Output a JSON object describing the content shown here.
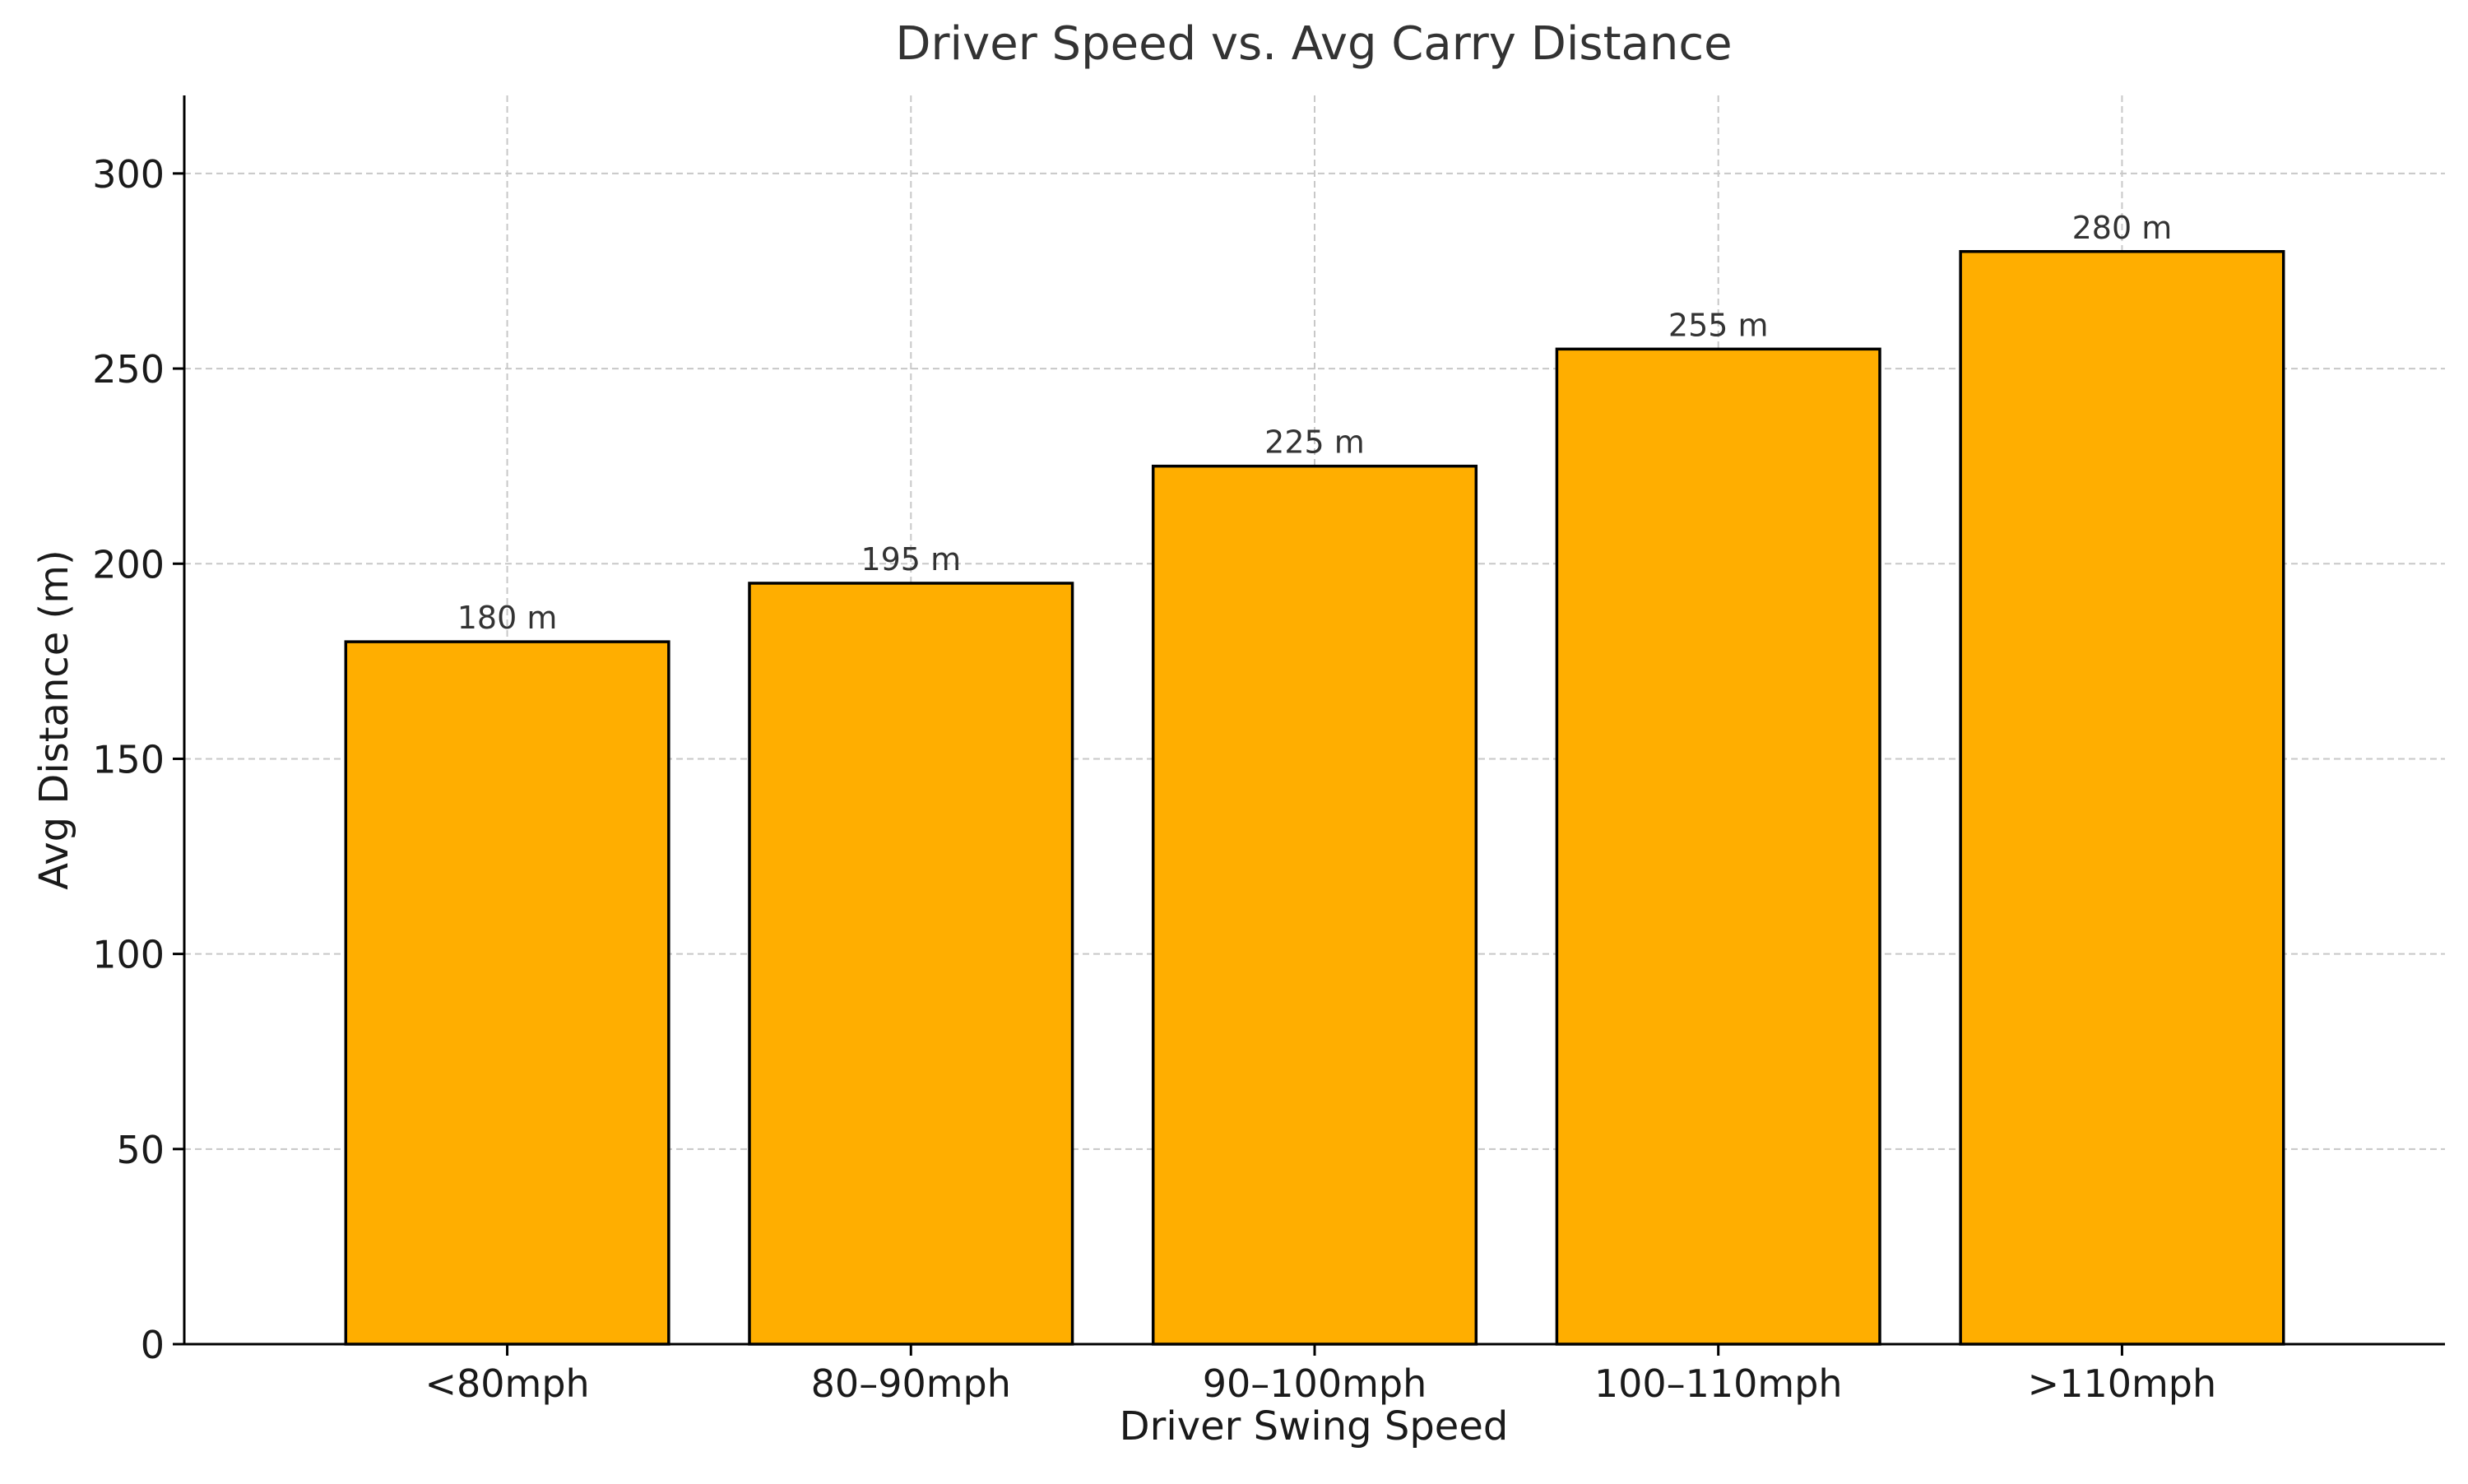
{
  "chart_data": {
    "type": "bar",
    "title": "Driver Speed vs. Avg Carry Distance",
    "xlabel": "Driver Swing Speed",
    "ylabel": "Avg Distance (m)",
    "categories": [
      "<80mph",
      "80–90mph",
      "90–100mph",
      "100–110mph",
      ">110mph"
    ],
    "values": [
      180,
      195,
      225,
      255,
      280
    ],
    "data_labels": [
      "180 m",
      "195 m",
      "225 m",
      "255 m",
      "280 m"
    ],
    "ylim": [
      0,
      320
    ],
    "yticks": [
      0,
      50,
      100,
      150,
      200,
      250,
      300
    ],
    "grid": true,
    "bar_color": "#FFAE00",
    "bar_edge_color": "#000000",
    "grid_color": "#c8c8c8",
    "text_color": "#333333"
  }
}
